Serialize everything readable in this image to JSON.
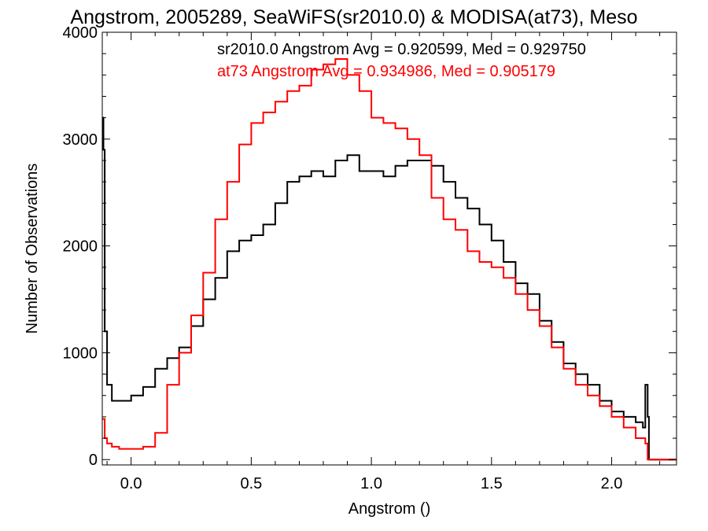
{
  "chart_data": {
    "type": "line",
    "step": true,
    "title": "Angstrom, 2005289, SeaWiFS(sr2010.0) & MODISA(at73), Meso",
    "xlabel": "Angstrom ()",
    "ylabel": "Number of Observations",
    "xlim": [
      -0.12,
      2.27
    ],
    "ylim": [
      -50,
      4000
    ],
    "x_ticks": [
      0.0,
      0.5,
      1.0,
      1.5,
      2.0
    ],
    "x_tick_labels": [
      "0.0",
      "0.5",
      "1.0",
      "1.5",
      "2.0"
    ],
    "y_ticks": [
      0,
      1000,
      2000,
      3000,
      4000
    ],
    "y_tick_labels": [
      "0",
      "1000",
      "2000",
      "3000",
      "4000"
    ],
    "grid": false,
    "legend_placement": "top-right",
    "annotations": [
      {
        "text": "sr2010.0 Angstrom Avg = 0.920599, Med = 0.929750",
        "color": "#000000"
      },
      {
        "text": "at73 Angstrom Avg = 0.934986, Med = 0.905179",
        "color": "#ff0000"
      }
    ],
    "series": [
      {
        "color": "#000000",
        "x": [
          -0.12,
          -0.115,
          -0.11,
          -0.1,
          -0.08,
          -0.05,
          0.0,
          0.05,
          0.1,
          0.15,
          0.2,
          0.25,
          0.3,
          0.35,
          0.4,
          0.45,
          0.5,
          0.55,
          0.6,
          0.65,
          0.7,
          0.75,
          0.8,
          0.85,
          0.9,
          0.95,
          1.0,
          1.05,
          1.1,
          1.15,
          1.2,
          1.25,
          1.3,
          1.35,
          1.4,
          1.45,
          1.5,
          1.55,
          1.6,
          1.65,
          1.7,
          1.75,
          1.8,
          1.85,
          1.9,
          1.95,
          2.0,
          2.05,
          2.1,
          2.13,
          2.14,
          2.15,
          2.155,
          2.2,
          2.27
        ],
        "y": [
          3200,
          2900,
          1200,
          700,
          550,
          550,
          600,
          680,
          850,
          950,
          1050,
          1250,
          1500,
          1700,
          1950,
          2050,
          2100,
          2200,
          2400,
          2600,
          2650,
          2700,
          2650,
          2800,
          2850,
          2700,
          2700,
          2650,
          2750,
          2800,
          2800,
          2750,
          2600,
          2450,
          2350,
          2200,
          2050,
          1850,
          1650,
          1550,
          1300,
          1100,
          900,
          800,
          700,
          550,
          450,
          400,
          350,
          300,
          700,
          400,
          0,
          0,
          0
        ]
      },
      {
        "color": "#ff0000",
        "x": [
          -0.12,
          -0.11,
          -0.1,
          -0.08,
          -0.05,
          0.0,
          0.05,
          0.1,
          0.15,
          0.2,
          0.25,
          0.3,
          0.35,
          0.4,
          0.45,
          0.5,
          0.55,
          0.6,
          0.65,
          0.7,
          0.75,
          0.8,
          0.85,
          0.9,
          0.95,
          1.0,
          1.05,
          1.1,
          1.15,
          1.2,
          1.25,
          1.3,
          1.35,
          1.4,
          1.45,
          1.5,
          1.55,
          1.6,
          1.65,
          1.7,
          1.75,
          1.8,
          1.85,
          1.9,
          1.95,
          2.0,
          2.05,
          2.1,
          2.14,
          2.15,
          2.2,
          2.27
        ],
        "y": [
          380,
          200,
          150,
          120,
          100,
          100,
          120,
          250,
          700,
          1000,
          1350,
          1750,
          2250,
          2600,
          2950,
          3150,
          3250,
          3350,
          3450,
          3500,
          3650,
          3700,
          3750,
          3600,
          3450,
          3200,
          3150,
          3100,
          3000,
          2850,
          2450,
          2250,
          2150,
          1950,
          1850,
          1800,
          1700,
          1550,
          1400,
          1250,
          1050,
          850,
          700,
          600,
          500,
          400,
          300,
          200,
          150,
          0,
          0,
          0
        ]
      }
    ]
  }
}
